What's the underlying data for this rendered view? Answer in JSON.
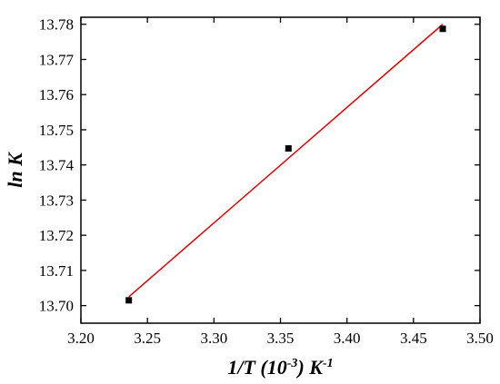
{
  "chart_data": {
    "type": "scatter",
    "title": "",
    "xlabel": {
      "main": "1/T (10",
      "exp1": "-3",
      "mid": ") K",
      "exp2": "-1"
    },
    "ylabel": "ln K",
    "xlim": [
      3.2,
      3.5
    ],
    "ylim": [
      13.695,
      13.782
    ],
    "x_ticks": [
      3.2,
      3.25,
      3.3,
      3.35,
      3.4,
      3.45,
      3.5
    ],
    "y_ticks": [
      13.7,
      13.71,
      13.72,
      13.73,
      13.74,
      13.75,
      13.76,
      13.77,
      13.78
    ],
    "x_tick_labels": [
      "3.20",
      "3.25",
      "3.30",
      "3.35",
      "3.40",
      "3.45",
      "3.50"
    ],
    "y_tick_labels": [
      "13.70",
      "13.71",
      "13.72",
      "13.73",
      "13.74",
      "13.75",
      "13.76",
      "13.77",
      "13.78"
    ],
    "series": [
      {
        "type": "scatter",
        "marker": "square",
        "color": "#000000",
        "x": [
          3.236,
          3.356,
          3.472
        ],
        "y": [
          13.7015,
          13.7447,
          13.7787
        ]
      },
      {
        "type": "line",
        "color": "#e00000",
        "x": [
          3.236,
          3.472
        ],
        "y": [
          13.7025,
          13.78
        ]
      }
    ],
    "grid": false,
    "legend": "none"
  }
}
